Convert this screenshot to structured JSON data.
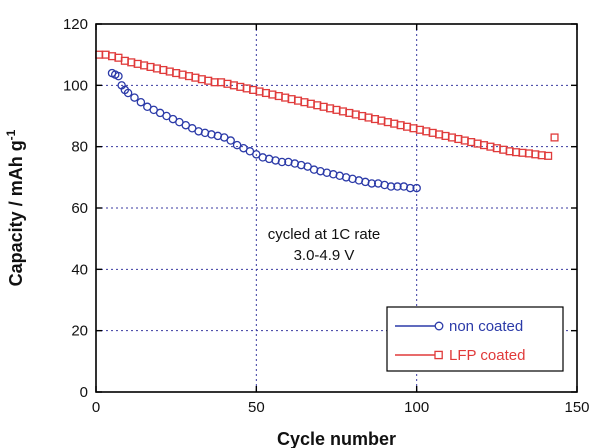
{
  "chart_data": {
    "type": "scatter",
    "xlabel": "Cycle number",
    "ylabel": "Capacity / mAh g",
    "ylabel_superscript": "-1",
    "xlim": [
      0,
      150
    ],
    "ylim": [
      0,
      120
    ],
    "xticks": [
      "0",
      "50",
      "100",
      "150"
    ],
    "yticks": [
      "0",
      "20",
      "40",
      "60",
      "80",
      "100",
      "120"
    ],
    "grid": "dotted",
    "legend_position": "bottom-right",
    "annotation": [
      "cycled at 1C rate",
      "3.0-4.9 V"
    ],
    "series": [
      {
        "name": "non coated",
        "color": "#2b3aa8",
        "marker": "circle",
        "points": [
          [
            5,
            104
          ],
          [
            6,
            103.5
          ],
          [
            7,
            103
          ],
          [
            8,
            100
          ],
          [
            9,
            98.5
          ],
          [
            10,
            97.5
          ],
          [
            12,
            96
          ],
          [
            14,
            94.5
          ],
          [
            16,
            93
          ],
          [
            18,
            92
          ],
          [
            20,
            91
          ],
          [
            22,
            90
          ],
          [
            24,
            89
          ],
          [
            26,
            88
          ],
          [
            28,
            87
          ],
          [
            30,
            86
          ],
          [
            32,
            85
          ],
          [
            34,
            84.5
          ],
          [
            36,
            84
          ],
          [
            38,
            83.5
          ],
          [
            40,
            83
          ],
          [
            42,
            82
          ],
          [
            44,
            80.5
          ],
          [
            46,
            79.5
          ],
          [
            48,
            78.5
          ],
          [
            50,
            77.5
          ],
          [
            52,
            76.5
          ],
          [
            54,
            76
          ],
          [
            56,
            75.5
          ],
          [
            58,
            75
          ],
          [
            60,
            75
          ],
          [
            62,
            74.5
          ],
          [
            64,
            74
          ],
          [
            66,
            73.5
          ],
          [
            68,
            72.5
          ],
          [
            70,
            72
          ],
          [
            72,
            71.5
          ],
          [
            74,
            71
          ],
          [
            76,
            70.5
          ],
          [
            78,
            70
          ],
          [
            80,
            69.5
          ],
          [
            82,
            69
          ],
          [
            84,
            68.5
          ],
          [
            86,
            68
          ],
          [
            88,
            68
          ],
          [
            90,
            67.5
          ],
          [
            92,
            67
          ],
          [
            94,
            67
          ],
          [
            96,
            67
          ],
          [
            98,
            66.5
          ],
          [
            100,
            66.5
          ]
        ]
      },
      {
        "name": "LFP coated",
        "color": "#e03a3a",
        "marker": "square",
        "points": [
          [
            1,
            110
          ],
          [
            3,
            110
          ],
          [
            5,
            109.5
          ],
          [
            7,
            109
          ],
          [
            9,
            108
          ],
          [
            11,
            107.5
          ],
          [
            13,
            107
          ],
          [
            15,
            106.5
          ],
          [
            17,
            106
          ],
          [
            19,
            105.5
          ],
          [
            21,
            105
          ],
          [
            23,
            104.5
          ],
          [
            25,
            104
          ],
          [
            27,
            103.5
          ],
          [
            29,
            103
          ],
          [
            31,
            102.5
          ],
          [
            33,
            102
          ],
          [
            35,
            101.5
          ],
          [
            37,
            101
          ],
          [
            39,
            101
          ],
          [
            41,
            100.5
          ],
          [
            43,
            100
          ],
          [
            45,
            99.5
          ],
          [
            47,
            99
          ],
          [
            49,
            98.5
          ],
          [
            51,
            98
          ],
          [
            53,
            97.5
          ],
          [
            55,
            97
          ],
          [
            57,
            96.5
          ],
          [
            59,
            96
          ],
          [
            61,
            95.5
          ],
          [
            63,
            95
          ],
          [
            65,
            94.5
          ],
          [
            67,
            94
          ],
          [
            69,
            93.5
          ],
          [
            71,
            93
          ],
          [
            73,
            92.5
          ],
          [
            75,
            92
          ],
          [
            77,
            91.5
          ],
          [
            79,
            91
          ],
          [
            81,
            90.5
          ],
          [
            83,
            90
          ],
          [
            85,
            89.5
          ],
          [
            87,
            89
          ],
          [
            89,
            88.5
          ],
          [
            91,
            88
          ],
          [
            93,
            87.5
          ],
          [
            95,
            87
          ],
          [
            97,
            86.5
          ],
          [
            99,
            86
          ],
          [
            101,
            85.5
          ],
          [
            103,
            85
          ],
          [
            105,
            84.5
          ],
          [
            107,
            84
          ],
          [
            109,
            83.5
          ],
          [
            111,
            83
          ],
          [
            113,
            82.5
          ],
          [
            115,
            82
          ],
          [
            117,
            81.5
          ],
          [
            119,
            81
          ],
          [
            121,
            80.5
          ],
          [
            123,
            80
          ],
          [
            125,
            79.5
          ],
          [
            127,
            79
          ],
          [
            129,
            78.5
          ],
          [
            131,
            78.2
          ],
          [
            133,
            78
          ],
          [
            135,
            77.8
          ],
          [
            137,
            77.5
          ],
          [
            139,
            77.2
          ],
          [
            141,
            77
          ],
          [
            143,
            83
          ]
        ]
      }
    ]
  }
}
